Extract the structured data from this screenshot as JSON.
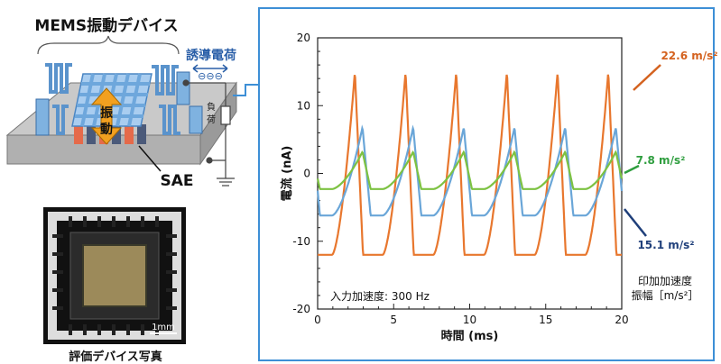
{
  "device": {
    "title": "MEMS振動デバイス",
    "induced_charge": "誘導電荷",
    "charge_symbols": "⊖⊖⊖",
    "vibration": [
      "振",
      "動"
    ],
    "load": [
      "負",
      "荷"
    ],
    "sae": "SAE"
  },
  "photo": {
    "scale_label": "1mm",
    "caption": "評価デバイス写真"
  },
  "chart_data": {
    "type": "line",
    "xlabel": "時間 (ms)",
    "ylabel": "電流 (nA)",
    "xlim": [
      0,
      20
    ],
    "ylim": [
      -20,
      20
    ],
    "xticks": [
      "0",
      "5",
      "10",
      "15",
      "20"
    ],
    "yticks": [
      "20",
      "10",
      "0",
      "-10",
      "-20"
    ],
    "annotation": "入力加速度: 300 Hz",
    "legend_title": [
      "印加加速度",
      "振幅［m/s²］"
    ],
    "frequency_hz": 300,
    "period_ms": 3.333,
    "series": [
      {
        "name": "22.6 m/s²",
        "color": "#e8772e",
        "peak": 15.0,
        "trough": -12.0,
        "peak_phase": 0.45
      },
      {
        "name": "15.1 m/s²",
        "color": "#6aa6d8",
        "peak": 6.8,
        "trough": -6.2,
        "peak_phase": 0.6
      },
      {
        "name": "7.8 m/s²",
        "color": "#7dc242",
        "peak": 3.2,
        "trough": -2.3,
        "peak_phase": 0.6
      }
    ],
    "label_colors": {
      "22.6 m/s²": "#d4621f",
      "15.1 m/s²": "#1f3f7a",
      "7.8 m/s²": "#2f9e3f"
    }
  }
}
